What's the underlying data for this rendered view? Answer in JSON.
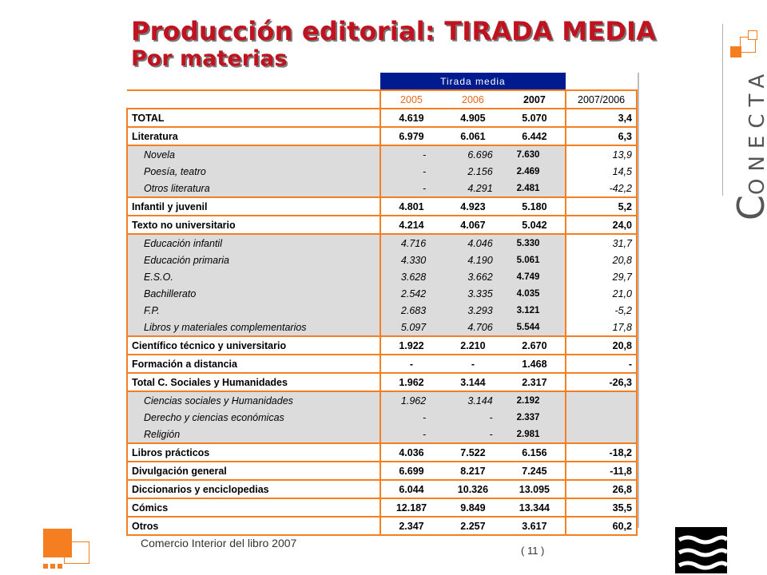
{
  "page": {
    "title": "Producción editorial: TIRADA MEDIA",
    "subtitle": "Por materias",
    "footer_text": "Comercio Interior del libro 2007",
    "page_number": "( 11 )"
  },
  "brand": {
    "initial": "C",
    "rest": "ONECTA"
  },
  "colors": {
    "title": "#c0121f",
    "accent": "#f57e20",
    "header_band": "#001b8f",
    "sub_row_bg": "#dcdcdc"
  },
  "table": {
    "band_label": "Tirada media",
    "columns": [
      "2005",
      "2006",
      "2007",
      "2007/2006"
    ],
    "rows": [
      {
        "type": "main",
        "label": "TOTAL",
        "v2005": "4.619",
        "v2006": "4.905",
        "v2007": "5.070",
        "var": "3,4"
      },
      {
        "type": "main",
        "label": "Literatura",
        "v2005": "6.979",
        "v2006": "6.061",
        "v2007": "6.442",
        "var": "6,3"
      },
      {
        "type": "sub",
        "label": "Novela",
        "v2005": "-",
        "v2006": "6.696",
        "v2007": "7.630",
        "var": "13,9"
      },
      {
        "type": "sub",
        "label": "Poesía, teatro",
        "v2005": "-",
        "v2006": "2.156",
        "v2007": "2.469",
        "var": "14,5"
      },
      {
        "type": "sub",
        "label": "Otros literatura",
        "v2005": "-",
        "v2006": "4.291",
        "v2007": "2.481",
        "var": "-42,2"
      },
      {
        "type": "main",
        "label": "Infantil y juvenil",
        "v2005": "4.801",
        "v2006": "4.923",
        "v2007": "5.180",
        "var": "5,2"
      },
      {
        "type": "main",
        "label": "Texto no universitario",
        "v2005": "4.214",
        "v2006": "4.067",
        "v2007": "5.042",
        "var": "24,0"
      },
      {
        "type": "sub",
        "label": "Educación infantil",
        "v2005": "4.716",
        "v2006": "4.046",
        "v2007": "5.330",
        "var": "31,7"
      },
      {
        "type": "sub",
        "label": "Educación primaria",
        "v2005": "4.330",
        "v2006": "4.190",
        "v2007": "5.061",
        "var": "20,8"
      },
      {
        "type": "sub",
        "label": "E.S.O.",
        "v2005": "3.628",
        "v2006": "3.662",
        "v2007": "4.749",
        "var": "29,7"
      },
      {
        "type": "sub",
        "label": "Bachillerato",
        "v2005": "2.542",
        "v2006": "3.335",
        "v2007": "4.035",
        "var": "21,0"
      },
      {
        "type": "sub",
        "label": "F.P.",
        "v2005": "2.683",
        "v2006": "3.293",
        "v2007": "3.121",
        "var": "-5,2"
      },
      {
        "type": "sub",
        "label": "Libros y materiales complementarios",
        "v2005": "5.097",
        "v2006": "4.706",
        "v2007": "5.544",
        "var": "17,8"
      },
      {
        "type": "main",
        "label": "Científico técnico y universitario",
        "v2005": "1.922",
        "v2006": "2.210",
        "v2007": "2.670",
        "var": "20,8"
      },
      {
        "type": "main",
        "label": "Formación a distancia",
        "v2005": "-",
        "v2006": "-",
        "v2007": "1.468",
        "var": "-"
      },
      {
        "type": "main",
        "label": "Total C. Sociales y Humanidades",
        "v2005": "1.962",
        "v2006": "3.144",
        "v2007": "2.317",
        "var": "-26,3"
      },
      {
        "type": "sub",
        "label": "Ciencias sociales y Humanidades",
        "v2005": "1.962",
        "v2006": "3.144",
        "v2007": "2.192",
        "var": ""
      },
      {
        "type": "sub",
        "label": "Derecho y ciencias económicas",
        "v2005": "-",
        "v2006": "-",
        "v2007": "2.337",
        "var": ""
      },
      {
        "type": "sub",
        "label": "Religión",
        "v2005": "-",
        "v2006": "-",
        "v2007": "2.981",
        "var": ""
      },
      {
        "type": "main",
        "label": "Libros prácticos",
        "v2005": "4.036",
        "v2006": "7.522",
        "v2007": "6.156",
        "var": "-18,2"
      },
      {
        "type": "main",
        "label": "Divulgación general",
        "v2005": "6.699",
        "v2006": "8.217",
        "v2007": "7.245",
        "var": "-11,8"
      },
      {
        "type": "main",
        "label": "Diccionarios y enciclopedias",
        "v2005": "6.044",
        "v2006": "10.326",
        "v2007": "13.095",
        "var": "26,8"
      },
      {
        "type": "main",
        "label": "Cómics",
        "v2005": "12.187",
        "v2006": "9.849",
        "v2007": "13.344",
        "var": "35,5"
      },
      {
        "type": "main",
        "label": "Otros",
        "v2005": "2.347",
        "v2006": "2.257",
        "v2007": "3.617",
        "var": "60,2"
      }
    ]
  }
}
